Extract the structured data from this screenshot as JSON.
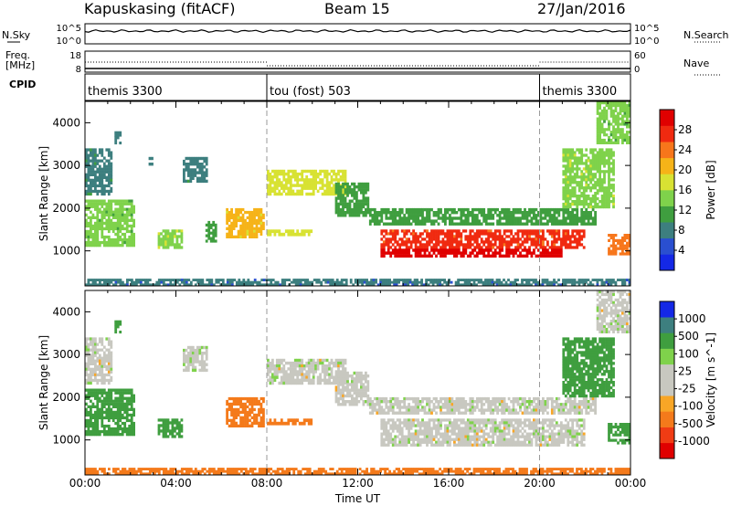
{
  "header": {
    "station": "Kapuskasing (fitACF)",
    "beam": "Beam 15",
    "date": "27/Jan/2016"
  },
  "top_panels": {
    "nsky_label": "N.Sky",
    "nsky_ticks": [
      "10^5",
      "10^0"
    ],
    "nsearch_label": "N.Search",
    "nsearch_ticks": [
      "10^5",
      "10^0"
    ],
    "freq_label": "Freq.",
    "freq_unit": "[MHz]",
    "freq_ticks": [
      18,
      8
    ],
    "nave_label": "Nave",
    "nave_ticks": [
      60,
      0
    ],
    "cpid_label": "CPID",
    "cpid_segments": [
      {
        "label": "themis 3300",
        "start_h": 0,
        "end_h": 8
      },
      {
        "label": "tou (fost) 503",
        "start_h": 8,
        "end_h": 20
      },
      {
        "label": "themis 3300",
        "start_h": 20,
        "end_h": 24
      }
    ]
  },
  "colors": {
    "power": [
      "#1428e6",
      "#2a4fd0",
      "#3d7f7f",
      "#3f9e3f",
      "#7fd24b",
      "#d8e233",
      "#f6b318",
      "#f7761b",
      "#f02a10",
      "#e00000"
    ],
    "velocity": [
      "#e00000",
      "#f03c14",
      "#f47a1b",
      "#f8a626",
      "#c8c8c0",
      "#c8c8c0",
      "#7fd24b",
      "#3f9e3f",
      "#3d7f7f",
      "#1428e6"
    ]
  },
  "chart_data": [
    {
      "type": "heatmap",
      "title": "Power",
      "ylabel": "Slant Range [km]",
      "colorbar_label": "Power [dB]",
      "colorbar_ticks": [
        4,
        8,
        12,
        16,
        20,
        24,
        28
      ],
      "clim": [
        0,
        30
      ],
      "xlim": [
        0,
        24
      ],
      "ylim": [
        180,
        4500
      ],
      "y_ticks": [
        1000,
        2000,
        3000,
        4000
      ],
      "regions": [
        {
          "t0": 0.0,
          "t1": 2.2,
          "r0": 1100,
          "r1": 2200,
          "value": 12
        },
        {
          "t0": 0.0,
          "t1": 1.2,
          "r0": 2300,
          "r1": 3400,
          "value": 8
        },
        {
          "t0": 1.3,
          "t1": 1.6,
          "r0": 3500,
          "r1": 3800,
          "value": 8
        },
        {
          "t0": 2.8,
          "t1": 3.0,
          "r0": 3000,
          "r1": 3200,
          "value": 6
        },
        {
          "t0": 3.2,
          "t1": 4.3,
          "r0": 1050,
          "r1": 1500,
          "value": 14
        },
        {
          "t0": 4.3,
          "t1": 5.4,
          "r0": 2600,
          "r1": 3200,
          "value": 8
        },
        {
          "t0": 5.3,
          "t1": 5.8,
          "r0": 1200,
          "r1": 1700,
          "value": 10
        },
        {
          "t0": 6.2,
          "t1": 7.9,
          "r0": 1300,
          "r1": 2000,
          "value": 18
        },
        {
          "t0": 8.0,
          "t1": 10.0,
          "r0": 1350,
          "r1": 1500,
          "value": 16
        },
        {
          "t0": 8.0,
          "t1": 11.5,
          "r0": 2300,
          "r1": 2900,
          "value": 16
        },
        {
          "t0": 11.0,
          "t1": 12.5,
          "r0": 1800,
          "r1": 2600,
          "value": 10
        },
        {
          "t0": 12.5,
          "t1": 22.5,
          "r0": 1600,
          "r1": 2000,
          "value": 10
        },
        {
          "t0": 13.0,
          "t1": 22.0,
          "r0": 1050,
          "r1": 1500,
          "value": 24
        },
        {
          "t0": 13.0,
          "t1": 21.0,
          "r0": 850,
          "r1": 1050,
          "value": 29
        },
        {
          "t0": 21.0,
          "t1": 23.3,
          "r0": 2000,
          "r1": 3400,
          "value": 14
        },
        {
          "t0": 22.5,
          "t1": 24.0,
          "r0": 3500,
          "r1": 4500,
          "value": 12
        },
        {
          "t0": 23.0,
          "t1": 24.0,
          "r0": 900,
          "r1": 1400,
          "value": 22
        },
        {
          "t0": 0.0,
          "t1": 24.0,
          "r0": 180,
          "r1": 350,
          "value": 6
        }
      ]
    },
    {
      "type": "heatmap",
      "title": "Velocity",
      "ylabel": "Slant Range [km]",
      "xlabel": "Time UT",
      "colorbar_label": "Velocity [m s^-1]",
      "colorbar_ticks": [
        1000,
        500,
        100,
        25,
        -25,
        -100,
        -500,
        -1000
      ],
      "xlim": [
        0,
        24
      ],
      "ylim": [
        180,
        4500
      ],
      "x_ticks": [
        "00:00",
        "04:00",
        "08:00",
        "12:00",
        "16:00",
        "20:00",
        "00:00"
      ],
      "y_ticks": [
        1000,
        2000,
        3000,
        4000
      ],
      "regions": [
        {
          "t0": 0.0,
          "t1": 2.2,
          "r0": 1100,
          "r1": 2200,
          "value": 300
        },
        {
          "t0": 0.0,
          "t1": 1.2,
          "r0": 2300,
          "r1": 3400,
          "value": 0
        },
        {
          "t0": 1.3,
          "t1": 1.6,
          "r0": 3500,
          "r1": 3800,
          "value": 150
        },
        {
          "t0": 3.2,
          "t1": 4.3,
          "r0": 1050,
          "r1": 1500,
          "value": 400
        },
        {
          "t0": 4.3,
          "t1": 5.4,
          "r0": 2600,
          "r1": 3200,
          "value": 0
        },
        {
          "t0": 6.2,
          "t1": 7.9,
          "r0": 1300,
          "r1": 2000,
          "value": -300
        },
        {
          "t0": 8.0,
          "t1": 10.0,
          "r0": 1350,
          "r1": 1500,
          "value": -400
        },
        {
          "t0": 8.0,
          "t1": 11.5,
          "r0": 2300,
          "r1": 2900,
          "value": 0
        },
        {
          "t0": 11.0,
          "t1": 12.5,
          "r0": 1800,
          "r1": 2600,
          "value": 0
        },
        {
          "t0": 12.5,
          "t1": 22.5,
          "r0": 1600,
          "r1": 2000,
          "value": 0
        },
        {
          "t0": 13.0,
          "t1": 22.0,
          "r0": 850,
          "r1": 1500,
          "value": 0
        },
        {
          "t0": 21.0,
          "t1": 23.3,
          "r0": 2000,
          "r1": 3400,
          "value": 200
        },
        {
          "t0": 22.5,
          "t1": 24.0,
          "r0": 3500,
          "r1": 4500,
          "value": 0
        },
        {
          "t0": 23.0,
          "t1": 24.0,
          "r0": 900,
          "r1": 1400,
          "value": 300
        },
        {
          "t0": 0.0,
          "t1": 24.0,
          "r0": 180,
          "r1": 350,
          "value": -200
        }
      ]
    }
  ]
}
